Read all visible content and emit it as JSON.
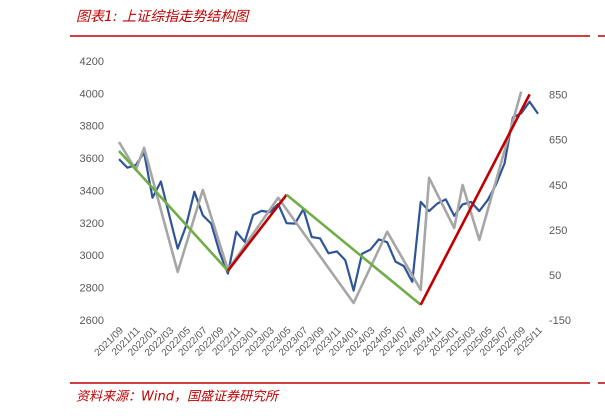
{
  "title": "图表1: 上证综指走势结构图",
  "source": "资料来源：Wind，国盛证券研究所",
  "chart_data": {
    "type": "line",
    "categories": [
      "2021/09",
      null,
      "2021/11",
      null,
      "2022/01",
      null,
      "2022/03",
      null,
      "2022/05",
      null,
      "2022/07",
      null,
      "2022/09",
      null,
      "2022/11",
      null,
      "2023/01",
      null,
      "2023/03",
      null,
      "2023/05",
      null,
      "2023/07",
      null,
      "2023/09",
      null,
      "2023/11",
      null,
      "2024/01",
      null,
      "2024/03",
      null,
      "2024/05",
      null,
      "2024/07",
      null,
      "2024/09",
      null,
      "2024/11",
      null,
      "2025/01",
      null,
      "2025/03",
      null,
      "2025/05",
      null,
      "2025/07",
      null,
      "2025/09",
      null,
      "2025/11"
    ],
    "ylim": [
      2600,
      4200
    ],
    "yticks": [
      2600,
      2800,
      3000,
      3200,
      3400,
      3600,
      3800,
      4000,
      4200
    ],
    "y2lim": [
      -150,
      1000
    ],
    "y2ticks": [
      -150,
      50,
      250,
      450,
      650,
      850
    ],
    "series": [
      {
        "color": "#2f5597",
        "values": [
          3600,
          3547,
          3563,
          3640,
          3361,
          3462,
          3252,
          3047,
          3186,
          3398,
          3253,
          3202,
          3024,
          2893,
          3151,
          3089,
          3255,
          3280,
          3273,
          3323,
          3204,
          3202,
          3291,
          3119,
          3110,
          3018,
          3030,
          2975,
          2788,
          3015,
          3041,
          3104,
          3087,
          2967,
          2939,
          2842,
          3336,
          3279,
          3326,
          3351,
          3250,
          3320,
          3336,
          3279,
          3347,
          3444,
          3573,
          3858,
          3883,
          3955,
          3880
        ]
      },
      {
        "color": "#a6a6a6",
        "axis": "y2",
        "x": [
          "2021/09",
          "2021/11",
          "2021/12",
          "2022/04",
          "2022/07",
          "2022/10",
          "2023/04",
          "2024/01",
          "2024/05",
          "2024/09",
          "2024/10",
          "2025/01",
          "2025/02",
          "2025/04",
          "2025/09"
        ],
        "values": [
          645,
          521,
          619,
          68,
          432,
          77,
          397,
          -70,
          246,
          -12,
          486,
          263,
          454,
          210,
          868
        ]
      },
      {
        "color": "#70ad47",
        "x": [
          "2021/09",
          "2022/10"
        ],
        "values": [
          3650,
          2910
        ]
      },
      {
        "color": "#c00000",
        "x": [
          "2022/10",
          "2023/05"
        ],
        "values": [
          2910,
          3380
        ]
      },
      {
        "color": "#70ad47",
        "x": [
          "2023/05",
          "2024/09"
        ],
        "values": [
          3380,
          2700
        ]
      },
      {
        "color": "#c00000",
        "x": [
          "2024/09",
          "2025/10"
        ],
        "values": [
          2700,
          4000
        ]
      }
    ]
  }
}
